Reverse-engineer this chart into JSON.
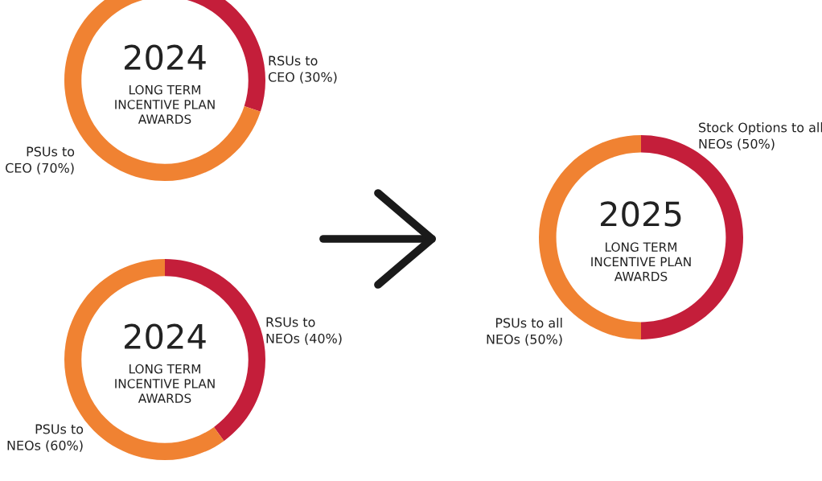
{
  "chart_data": [
    {
      "type": "donut",
      "title": "2024",
      "subtitle": "LONG TERM\nINCENTIVE PLAN\nAWARDS",
      "categories": [
        "RSUs to\nCEO (30%)",
        "PSUs to\nCEO (70%)"
      ],
      "values": [
        30,
        70
      ],
      "colors": [
        "#c41e3a",
        "#f08232"
      ]
    },
    {
      "type": "donut",
      "title": "2024",
      "subtitle": "LONG TERM\nINCENTIVE PLAN\nAWARDS",
      "categories": [
        "RSUs to\nNEOs (40%)",
        "PSUs to\nNEOs (60%)"
      ],
      "values": [
        40,
        60
      ],
      "colors": [
        "#c41e3a",
        "#f08232"
      ]
    },
    {
      "type": "donut",
      "title": "2025",
      "subtitle": "LONG TERM\nINCENTIVE PLAN\nAWARDS",
      "categories": [
        "Stock Options to all\nNEOs (50%)",
        "PSUs to all\nNEOs (50%)"
      ],
      "values": [
        50,
        50
      ],
      "colors": [
        "#c41e3a",
        "#f08232"
      ]
    }
  ]
}
